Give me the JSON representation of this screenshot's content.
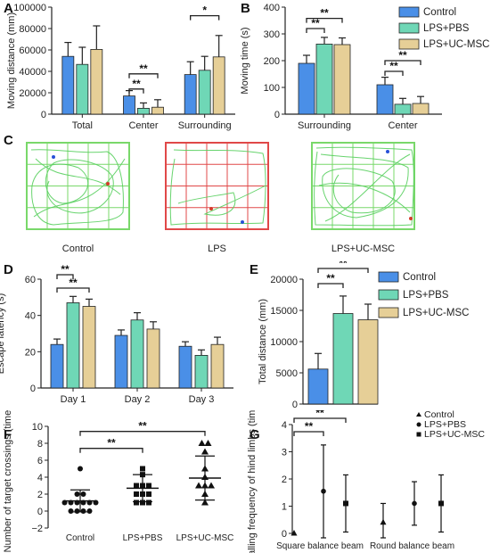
{
  "colors": {
    "control": "#4a8fe7",
    "pbs": "#6fd7b6",
    "ucmsc": "#e6cf97",
    "axis": "#222222",
    "grid_green": "#79d86a",
    "grid_red": "#e04848",
    "track": "#58cf5e"
  },
  "chart_data": [
    {
      "panel": "A",
      "type": "bar",
      "ylabel": "Moving distance (mm)",
      "ylim": [
        0,
        100000
      ],
      "yticks": [
        "0",
        "20000",
        "40000",
        "60000",
        "80000",
        "100000"
      ],
      "categories": [
        "Total",
        "Center",
        "Surrounding"
      ],
      "series": [
        {
          "name": "Control",
          "values": [
            54000,
            17000,
            37000
          ],
          "err": [
            13000,
            5000,
            12000
          ]
        },
        {
          "name": "LPS+PBS",
          "values": [
            46500,
            5500,
            41000
          ],
          "err": [
            16000,
            5000,
            13000
          ]
        },
        {
          "name": "LPS+UC-MSC",
          "values": [
            60500,
            6500,
            53500
          ],
          "err": [
            22000,
            7000,
            20000
          ]
        }
      ],
      "sig": [
        {
          "label": "**",
          "cat": 1,
          "from": 0,
          "to": 1,
          "level": 0
        },
        {
          "label": "**",
          "cat": 1,
          "from": 0,
          "to": 2,
          "level": 1
        },
        {
          "label": "*",
          "cat": 2,
          "from": 0,
          "to": 2,
          "level": 2
        }
      ]
    },
    {
      "panel": "B",
      "type": "bar",
      "ylabel": "Moving time (s)",
      "ylim": [
        0,
        400
      ],
      "yticks": [
        "0",
        "100",
        "200",
        "300",
        "400"
      ],
      "categories": [
        "Surrounding",
        "Center"
      ],
      "series": [
        {
          "name": "Control",
          "values": [
            190,
            110
          ],
          "err": [
            30,
            28
          ]
        },
        {
          "name": "LPS+PBS",
          "values": [
            262,
            37
          ],
          "err": [
            25,
            22
          ]
        },
        {
          "name": "LPS+UC-MSC",
          "values": [
            260,
            40
          ],
          "err": [
            25,
            26
          ]
        }
      ],
      "legend": [
        "Control",
        "LPS+PBS",
        "LPS+UC-MSC"
      ],
      "sig": [
        {
          "label": "**",
          "cat": 0,
          "from": 0,
          "to": 1,
          "level": 0
        },
        {
          "label": "**",
          "cat": 0,
          "from": 0,
          "to": 2,
          "level": 1
        },
        {
          "label": "**",
          "cat": 1,
          "from": 0,
          "to": 1,
          "level": 0
        },
        {
          "label": "**",
          "cat": 1,
          "from": 0,
          "to": 2,
          "level": 1
        }
      ]
    },
    {
      "panel": "D",
      "type": "bar",
      "ylabel": "Escape latency (s)",
      "ylim": [
        0,
        60
      ],
      "yticks": [
        "0",
        "20",
        "40",
        "60"
      ],
      "categories": [
        "Day 1",
        "Day 2",
        "Day 3"
      ],
      "series": [
        {
          "name": "Control",
          "values": [
            24,
            29,
            23
          ],
          "err": [
            3,
            3,
            2.5
          ]
        },
        {
          "name": "LPS+PBS",
          "values": [
            47,
            37.5,
            18
          ],
          "err": [
            3.5,
            4,
            3
          ]
        },
        {
          "name": "LPS+UC-MSC",
          "values": [
            45,
            32.5,
            24
          ],
          "err": [
            4,
            4,
            4
          ]
        }
      ],
      "sig": [
        {
          "label": "**",
          "cat": 0,
          "from": 0,
          "to": 1,
          "level": 0
        },
        {
          "label": "**",
          "cat": 0,
          "from": 0,
          "to": 2,
          "level": 1
        }
      ]
    },
    {
      "panel": "E",
      "type": "bar",
      "ylabel": "Total distance (mm)",
      "ylim": [
        0,
        20000
      ],
      "yticks": [
        "0",
        "5000",
        "10000",
        "15000",
        "20000"
      ],
      "categories": [
        "Control",
        "LPS+PBS",
        "LPS+UC-MSC"
      ],
      "series": [
        {
          "name": "Total distance",
          "values": [
            5600,
            14500,
            13500
          ],
          "err": [
            2500,
            2800,
            2500
          ]
        }
      ],
      "legend": [
        "Control",
        "LPS+PBS",
        "LPS+UC-MSC"
      ],
      "sig": [
        {
          "label": "**",
          "from": 0,
          "to": 1,
          "level": 0
        },
        {
          "label": "**",
          "from": 0,
          "to": 2,
          "level": 1
        }
      ]
    },
    {
      "panel": "F",
      "type": "scatter",
      "ylabel": "Number of target crossings (times)",
      "ylim": [
        -2,
        10
      ],
      "yticks": [
        "−2",
        "0",
        "2",
        "4",
        "6",
        "8",
        "10"
      ],
      "categories": [
        "Control",
        "LPS+PBS",
        "LPS+UC-MSC"
      ],
      "groups": [
        {
          "name": "Control",
          "points": [
            5,
            2,
            2,
            1,
            1,
            1,
            1,
            1,
            1,
            0,
            0,
            0,
            0
          ],
          "mean": 1.2,
          "sd": 1.3
        },
        {
          "name": "LPS+PBS",
          "points": [
            5,
            4.3,
            3,
            3,
            3,
            2,
            2,
            2,
            1,
            1,
            1
          ],
          "mean": 2.7,
          "sd": 1.6
        },
        {
          "name": "LPS+UC-MSC",
          "points": [
            8,
            8,
            7,
            5,
            4,
            3,
            3,
            3,
            2,
            1
          ],
          "mean": 3.9,
          "sd": 2.6
        }
      ],
      "sig": [
        {
          "label": "**",
          "from": 0,
          "to": 1,
          "level": 0
        },
        {
          "label": "**",
          "from": 0,
          "to": 2,
          "level": 1
        }
      ]
    },
    {
      "panel": "G",
      "type": "scatter",
      "ylabel": "Falling frequency of hind limbs (times)",
      "ylim": [
        0,
        4
      ],
      "yticks": [
        "0",
        "1",
        "2",
        "3",
        "4"
      ],
      "categories": [
        "Square balance beam",
        "Round balance beam"
      ],
      "series": [
        {
          "name": "Control",
          "marker": "triangle",
          "values": [
            0,
            0.4
          ],
          "err": [
            0,
            0.7
          ]
        },
        {
          "name": "LPS+PBS",
          "marker": "circle",
          "values": [
            1.55,
            1.1
          ],
          "err": [
            1.7,
            0.8
          ]
        },
        {
          "name": "LPS+UC-MSC",
          "marker": "square",
          "values": [
            1.1,
            1.1
          ],
          "err": [
            1.05,
            1.05
          ]
        }
      ],
      "legend": [
        "Control",
        "LPS+PBS",
        "LPS+UC-MSC"
      ],
      "sig": [
        {
          "label": "**",
          "cat": 0,
          "from": 0,
          "to": 1,
          "level": 0
        },
        {
          "label": "**",
          "cat": 0,
          "from": 0,
          "to": 2,
          "level": 1
        }
      ]
    }
  ],
  "panel_c": {
    "label": "C",
    "tracks": [
      {
        "caption": "Control",
        "grid": "green"
      },
      {
        "caption": "LPS",
        "grid": "red"
      },
      {
        "caption": "LPS+UC-MSC",
        "grid": "green"
      }
    ]
  }
}
